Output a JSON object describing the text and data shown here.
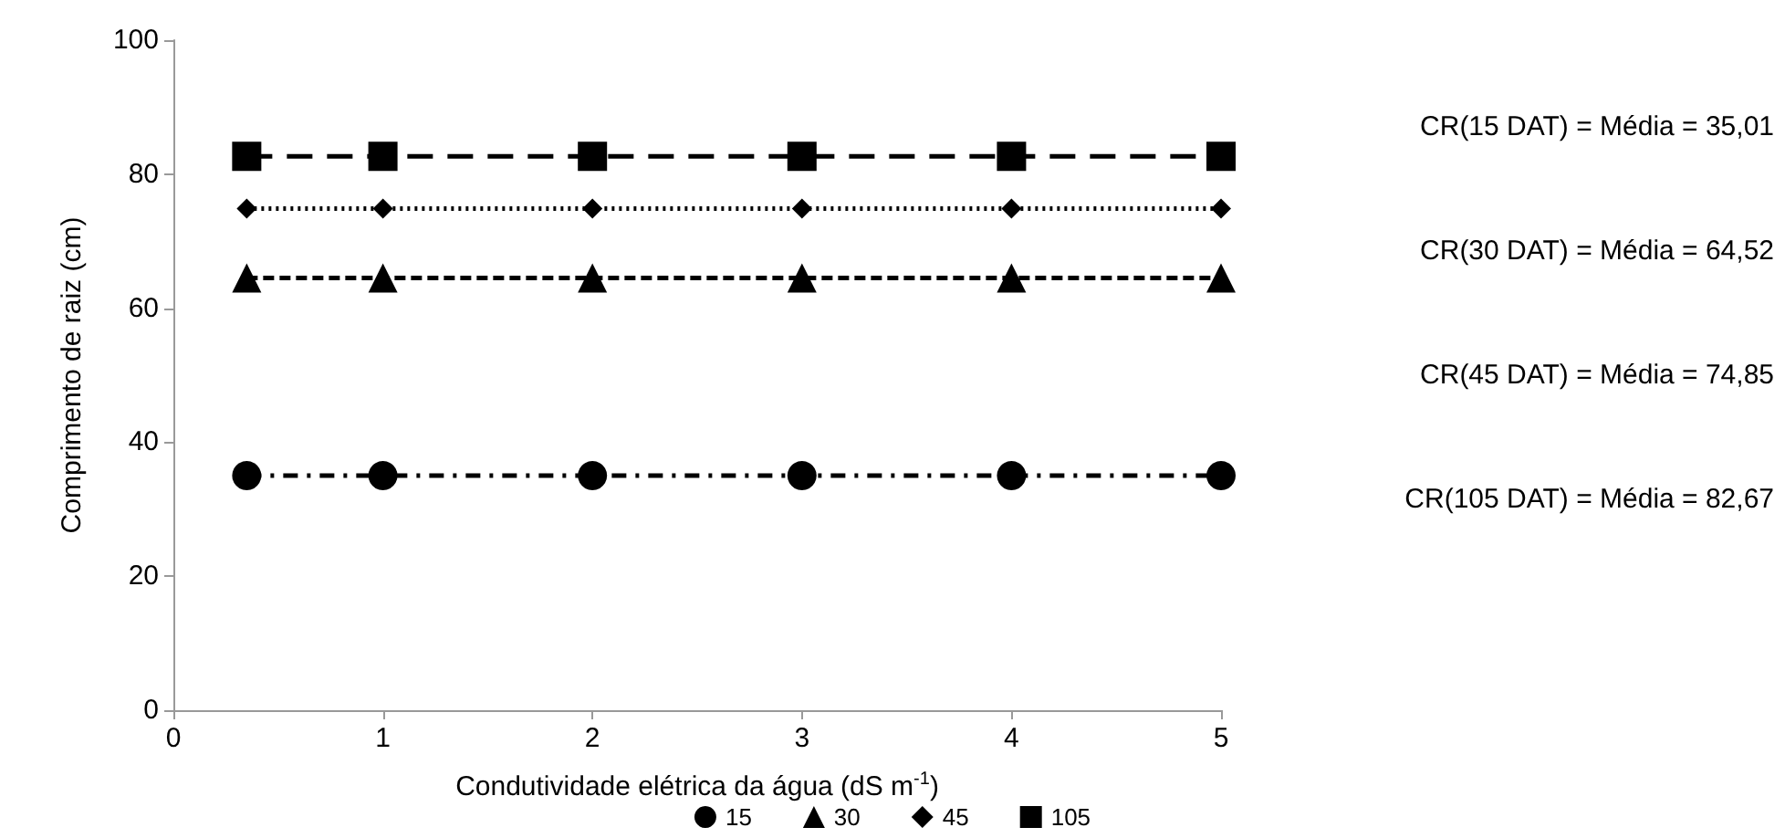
{
  "chart_data": {
    "type": "line",
    "xlabel": "Condutividade elétrica da água (dS m$^{-1}$)",
    "ylabel": "Comprimento de raiz (cm)",
    "x": [
      0.35,
      1,
      2,
      3,
      4,
      5
    ],
    "xlim": [
      0,
      5
    ],
    "xticks": [
      0,
      1,
      2,
      3,
      4,
      5
    ],
    "ylim": [
      0,
      100
    ],
    "yticks": [
      0,
      20,
      40,
      60,
      80,
      100
    ],
    "grid": false,
    "legend": "bottom",
    "series": [
      {
        "name": "15",
        "color": "#000000",
        "marker": "circle",
        "line_style": "dashdot",
        "values": [
          35.01,
          35.01,
          35.01,
          35.01,
          35.01,
          35.01
        ]
      },
      {
        "name": "30",
        "color": "#000000",
        "marker": "triangle",
        "line_style": "dashed",
        "values": [
          64.52,
          64.52,
          64.52,
          64.52,
          64.52,
          64.52
        ]
      },
      {
        "name": "45",
        "color": "#000000",
        "marker": "diamond",
        "line_style": "dotted",
        "values": [
          74.85,
          74.85,
          74.85,
          74.85,
          74.85,
          74.85
        ]
      },
      {
        "name": "105",
        "color": "#000000",
        "marker": "square",
        "line_style": "longdash",
        "values": [
          82.67,
          82.67,
          82.67,
          82.67,
          82.67,
          82.67
        ]
      }
    ],
    "annotations": [
      "CR(15 DAT) = Média = 35,01",
      "CR(30 DAT) = Média = 64,52",
      "CR(45 DAT) = Média = 74,85",
      "CR(105 DAT) = Média = 82,67"
    ]
  }
}
